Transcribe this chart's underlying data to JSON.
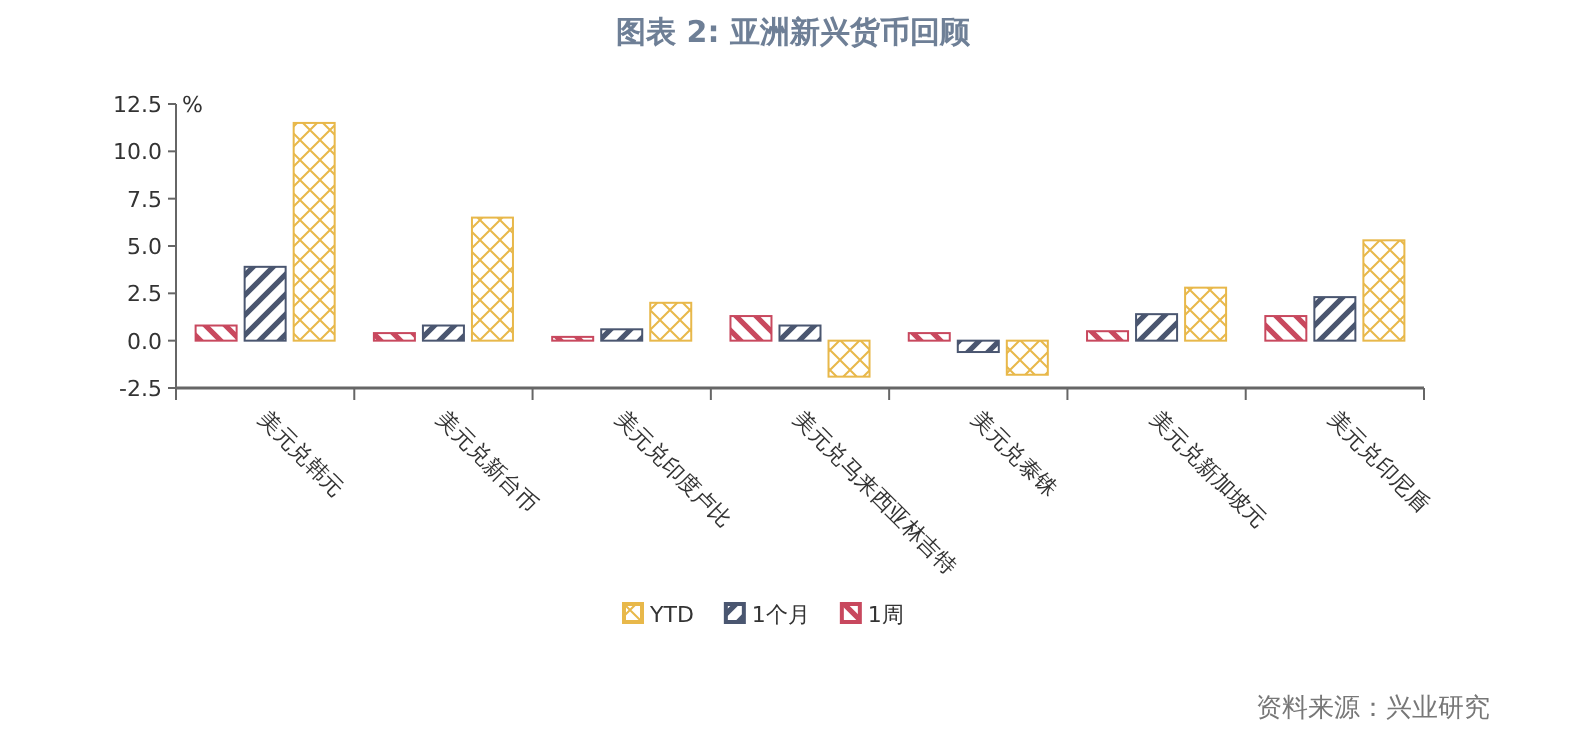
{
  "chart_data": {
    "type": "bar",
    "title": "图表 2: 亚洲新兴货币回顾",
    "ylabel": "%",
    "categories": [
      "美元兑韩元",
      "美元兑新台币",
      "美元兑印度卢比",
      "美元兑马来西亚林吉特",
      "美元兑泰铢",
      "美元兑新加坡元",
      "美元兑印尼盾"
    ],
    "series": [
      {
        "name": "1周",
        "color": "#c8485e",
        "values": [
          0.8,
          0.4,
          0.2,
          1.3,
          0.4,
          0.5,
          1.3
        ]
      },
      {
        "name": "1个月",
        "color": "#4a5670",
        "values": [
          3.9,
          0.8,
          0.6,
          0.8,
          -0.6,
          1.4,
          2.3
        ]
      },
      {
        "name": "YTD",
        "color": "#e8b84a",
        "values": [
          11.5,
          6.5,
          2.0,
          -1.9,
          -1.8,
          2.8,
          5.3
        ]
      }
    ],
    "ylim": [
      -2.5,
      12.5
    ],
    "yticks": [
      {
        "value": -2.5,
        "label": "-2.5"
      },
      {
        "value": 0,
        "label": "0.0"
      },
      {
        "value": 2.5,
        "label": "2.5"
      },
      {
        "value": 5,
        "label": "5.0"
      },
      {
        "value": 7.5,
        "label": "7.5"
      },
      {
        "value": 10,
        "label": "10.0"
      },
      {
        "value": 12.5,
        "label": "12.5"
      }
    ],
    "grid": false,
    "legend": "bottom",
    "annotations": [
      "资料来源：兴业研究"
    ]
  }
}
